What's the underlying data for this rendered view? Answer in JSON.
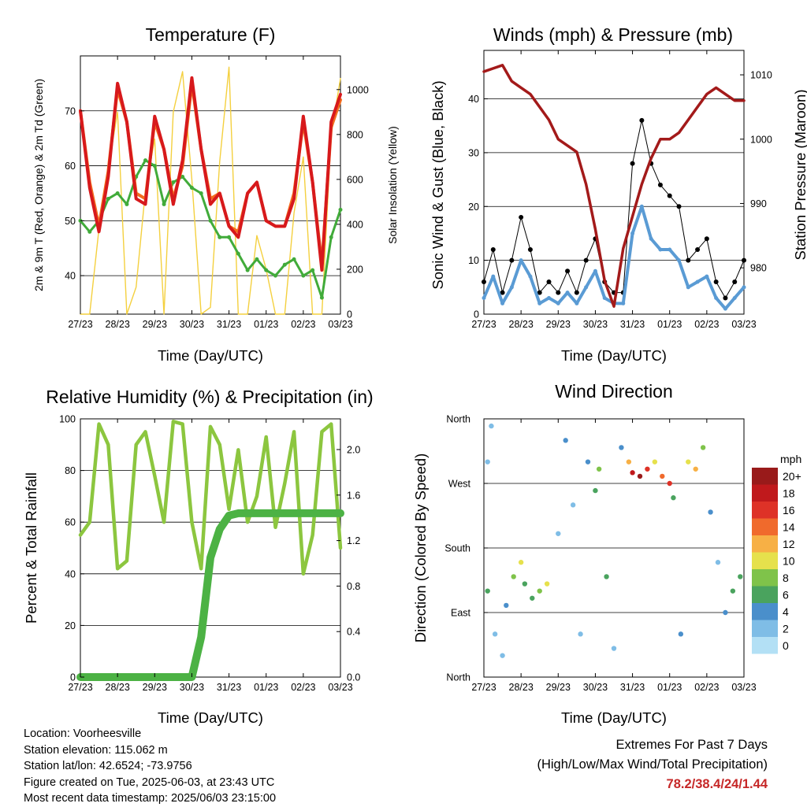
{
  "chart_data": [
    {
      "type": "line",
      "title": "Temperature (F)",
      "xlabel": "Time (Day/UTC)",
      "ylabel": "2m & 9m T (Red, Orange) & 2m Td (Green)",
      "y2label": "Solar Insolation (Yellow)",
      "x_ticks": [
        "27/23",
        "28/23",
        "29/23",
        "30/23",
        "31/23",
        "01/23",
        "02/23",
        "03/23"
      ],
      "ylim": [
        33,
        80
      ],
      "y_ticks": [
        40,
        50,
        60,
        70
      ],
      "y2lim": [
        0,
        1150
      ],
      "y2_ticks": [
        0,
        200,
        400,
        600,
        800,
        1000
      ],
      "grid": true,
      "x": [
        0,
        0.25,
        0.5,
        0.75,
        1,
        1.25,
        1.5,
        1.75,
        2,
        2.25,
        2.5,
        2.75,
        3,
        3.25,
        3.5,
        3.75,
        4,
        4.25,
        4.5,
        4.75,
        5,
        5.25,
        5.5,
        5.75,
        6,
        6.25,
        6.5,
        6.75,
        7
      ],
      "series": [
        {
          "color": "#d7191c",
          "values": [
            70,
            56,
            48,
            58,
            75,
            68,
            54,
            53,
            69,
            63,
            53,
            61,
            76,
            63,
            53,
            55,
            49,
            47,
            55,
            57,
            50,
            49,
            49,
            54,
            69,
            57,
            41,
            68,
            73
          ]
        },
        {
          "color": "#f46d1e",
          "values": [
            70,
            57,
            49,
            59,
            74,
            68,
            55,
            54,
            68,
            63,
            54,
            60,
            75,
            63,
            54,
            55,
            49,
            48,
            55,
            57,
            50,
            49,
            49,
            55,
            68,
            57,
            42,
            67,
            72
          ]
        },
        {
          "color": "#41ab3a",
          "values": [
            50,
            48,
            50,
            54,
            55,
            53,
            58,
            61,
            60,
            53,
            57,
            58,
            56,
            55,
            50,
            47,
            47,
            44,
            41,
            43,
            41,
            40,
            42,
            43,
            40,
            41,
            36,
            47,
            52
          ]
        },
        {
          "color": "#f4d03f",
          "axis": "y2",
          "values": [
            0,
            0,
            380,
            650,
            900,
            0,
            120,
            550,
            780,
            0,
            900,
            1080,
            600,
            0,
            30,
            680,
            1100,
            0,
            0,
            350,
            200,
            0,
            0,
            450,
            700,
            0,
            0,
            800,
            1050
          ]
        }
      ]
    },
    {
      "type": "scatter",
      "title": "Winds (mph) & Pressure (mb)",
      "xlabel": "Time (Day/UTC)",
      "ylabel": "Sonic Wind & Gust (Blue, Black)",
      "y2label": "Station Pressure (Maroon)",
      "x_ticks": [
        "27/23",
        "28/23",
        "29/23",
        "30/23",
        "31/23",
        "01/23",
        "02/23",
        "03/23"
      ],
      "ylim": [
        0,
        49
      ],
      "y_ticks": [
        0,
        10,
        20,
        30,
        40
      ],
      "y2lim": [
        972.8,
        1013.8
      ],
      "y2_ticks": [
        980,
        990,
        1000,
        1010
      ],
      "grid": true,
      "x": [
        0,
        0.25,
        0.5,
        0.75,
        1,
        1.25,
        1.5,
        1.75,
        2,
        2.25,
        2.5,
        2.75,
        3,
        3.25,
        3.5,
        3.75,
        4,
        4.25,
        4.5,
        4.75,
        5,
        5.25,
        5.5,
        5.75,
        6,
        6.25,
        6.5,
        6.75,
        7
      ],
      "series": [
        {
          "color": "#000000",
          "values": [
            6,
            12,
            4,
            10,
            18,
            12,
            4,
            6,
            4,
            8,
            4,
            10,
            14,
            6,
            4,
            4,
            28,
            36,
            28,
            24,
            22,
            20,
            10,
            12,
            14,
            6,
            3,
            6,
            10
          ]
        },
        {
          "color": "#5a9bd4",
          "values": [
            3,
            7,
            2,
            5,
            10,
            7,
            2,
            3,
            2,
            4,
            2,
            5,
            8,
            3,
            2,
            2,
            15,
            20,
            14,
            12,
            12,
            10,
            5,
            6,
            7,
            3,
            1,
            3,
            5
          ]
        },
        {
          "color": "#a31a1a",
          "axis": "y2",
          "values": [
            1010.5,
            1011,
            1011.5,
            1009,
            1008,
            1007,
            1005,
            1003,
            1000,
            999,
            998,
            993,
            986,
            978,
            974,
            983,
            988,
            993,
            997,
            1000,
            1000,
            1001,
            1003,
            1005,
            1007,
            1008,
            1007,
            1006,
            1006
          ]
        }
      ]
    },
    {
      "type": "line",
      "title": "Relative Humidity (%) & Precipitation (in)",
      "xlabel": "Time (Day/UTC)",
      "ylabel": "Percent & Total Rainfall",
      "x_ticks": [
        "27/23",
        "28/23",
        "29/23",
        "30/23",
        "31/23",
        "01/23",
        "02/23",
        "03/23"
      ],
      "ylim": [
        0,
        100
      ],
      "y_ticks": [
        0,
        20,
        40,
        60,
        80,
        100
      ],
      "y2lim": [
        0,
        2.27
      ],
      "y2_ticks": [
        0.0,
        0.4,
        0.8,
        1.2,
        1.6,
        2.0
      ],
      "grid": true,
      "x": [
        0,
        0.25,
        0.5,
        0.75,
        1,
        1.25,
        1.5,
        1.75,
        2,
        2.25,
        2.5,
        2.75,
        3,
        3.25,
        3.5,
        3.75,
        4,
        4.25,
        4.5,
        4.75,
        5,
        5.25,
        5.5,
        5.75,
        6,
        6.25,
        6.5,
        6.75,
        7
      ],
      "series": [
        {
          "color": "#8cc63f",
          "values": [
            55,
            60,
            98,
            90,
            42,
            45,
            90,
            95,
            78,
            60,
            99,
            98,
            60,
            42,
            97,
            90,
            65,
            88,
            60,
            70,
            93,
            58,
            75,
            95,
            40,
            55,
            95,
            98,
            50
          ]
        },
        {
          "color": "#4cb244",
          "axis": "y2",
          "values": [
            0,
            0,
            0,
            0,
            0,
            0,
            0,
            0,
            0,
            0,
            0,
            0,
            0,
            0.35,
            1.05,
            1.3,
            1.42,
            1.44,
            1.44,
            1.44,
            1.44,
            1.44,
            1.44,
            1.44,
            1.44,
            1.44,
            1.44,
            1.44,
            1.44
          ]
        }
      ]
    },
    {
      "type": "scatter",
      "title": "Wind Direction",
      "xlabel": "Time (Day/UTC)",
      "ylabel": "Direction (Colored By Speed)",
      "x_ticks": [
        "27/23",
        "28/23",
        "29/23",
        "30/23",
        "31/23",
        "01/23",
        "02/23",
        "03/23"
      ],
      "y_ticks": [
        "North",
        "East",
        "South",
        "West",
        "North"
      ],
      "ylim": [
        0,
        360
      ],
      "grid": true,
      "legend_title": "mph",
      "legend_labels": [
        "0",
        "2",
        "4",
        "6",
        "8",
        "10",
        "12",
        "14",
        "16",
        "18",
        "20+"
      ],
      "legend_colors": [
        "#b3e0f5",
        "#7fbde6",
        "#4a8fcb",
        "#4aa35e",
        "#7fc34a",
        "#e6e14c",
        "#f7b045",
        "#f06a2c",
        "#de3227",
        "#c0191c",
        "#991a1a"
      ],
      "legend_position": "right",
      "points": [
        {
          "x": 0.1,
          "y": 300,
          "speed": 1
        },
        {
          "x": 0.1,
          "y": 120,
          "speed": 5
        },
        {
          "x": 0.2,
          "y": 350,
          "speed": 2
        },
        {
          "x": 0.3,
          "y": 60,
          "speed": 2
        },
        {
          "x": 0.5,
          "y": 30,
          "speed": 1
        },
        {
          "x": 0.6,
          "y": 100,
          "speed": 4
        },
        {
          "x": 0.8,
          "y": 140,
          "speed": 8
        },
        {
          "x": 1,
          "y": 160,
          "speed": 10
        },
        {
          "x": 1.1,
          "y": 130,
          "speed": 6
        },
        {
          "x": 1.3,
          "y": 110,
          "speed": 5
        },
        {
          "x": 1.5,
          "y": 120,
          "speed": 7
        },
        {
          "x": 1.7,
          "y": 130,
          "speed": 9
        },
        {
          "x": 2,
          "y": 200,
          "speed": 2
        },
        {
          "x": 2.2,
          "y": 330,
          "speed": 3
        },
        {
          "x": 2.4,
          "y": 240,
          "speed": 2
        },
        {
          "x": 2.6,
          "y": 60,
          "speed": 1
        },
        {
          "x": 2.8,
          "y": 300,
          "speed": 4
        },
        {
          "x": 3,
          "y": 260,
          "speed": 6
        },
        {
          "x": 3.1,
          "y": 290,
          "speed": 8
        },
        {
          "x": 3.3,
          "y": 140,
          "speed": 5
        },
        {
          "x": 3.5,
          "y": 40,
          "speed": 2
        },
        {
          "x": 3.7,
          "y": 320,
          "speed": 4
        },
        {
          "x": 3.9,
          "y": 300,
          "speed": 12
        },
        {
          "x": 4,
          "y": 285,
          "speed": 18
        },
        {
          "x": 4.2,
          "y": 280,
          "speed": 20
        },
        {
          "x": 4.4,
          "y": 290,
          "speed": 15
        },
        {
          "x": 4.6,
          "y": 300,
          "speed": 10
        },
        {
          "x": 4.8,
          "y": 280,
          "speed": 14
        },
        {
          "x": 5,
          "y": 270,
          "speed": 16
        },
        {
          "x": 5.1,
          "y": 250,
          "speed": 6
        },
        {
          "x": 5.3,
          "y": 60,
          "speed": 3
        },
        {
          "x": 5.5,
          "y": 300,
          "speed": 9
        },
        {
          "x": 5.7,
          "y": 290,
          "speed": 12
        },
        {
          "x": 5.9,
          "y": 320,
          "speed": 8
        },
        {
          "x": 6.1,
          "y": 230,
          "speed": 3
        },
        {
          "x": 6.3,
          "y": 160,
          "speed": 1
        },
        {
          "x": 6.5,
          "y": 90,
          "speed": 4
        },
        {
          "x": 6.7,
          "y": 120,
          "speed": 5
        },
        {
          "x": 6.9,
          "y": 140,
          "speed": 6
        }
      ]
    }
  ],
  "footer": {
    "location": "Location: Voorheesville",
    "elevation": "Station elevation: 115.062 m",
    "latlon": "Station lat/lon: 42.6524; -73.9756",
    "created": "Figure created on Tue, 2025-06-03, at 23:43 UTC",
    "recent": "Most recent data timestamp: 2025/06/03 23:15:00"
  },
  "extremes": {
    "title": "Extremes For Past 7 Days",
    "subtitle": "(High/Low/Max Wind/Total Precipitation)",
    "values": "78.2/38.4/24/1.44"
  }
}
